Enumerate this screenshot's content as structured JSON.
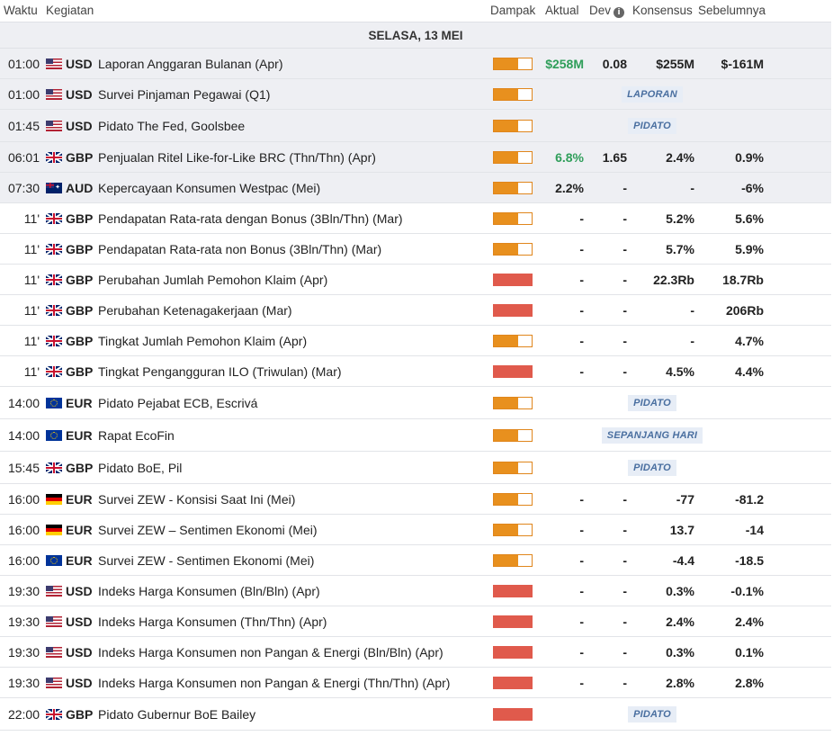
{
  "header": {
    "time": "Waktu",
    "event": "Kegiatan",
    "impact": "Dampak",
    "actual": "Aktual",
    "dev": "Dev",
    "consensus": "Konsensus",
    "previous": "Sebelumnya"
  },
  "date_label": "SELASA, 13 MEI",
  "colors": {
    "medium": "#e8901e",
    "high": "#e05a4c",
    "positive": "#2f9e5a",
    "past_row_bg": "#eeeff3"
  },
  "rows": [
    {
      "time": "01:00",
      "flag": "us",
      "currency": "USD",
      "event": "Laporan Anggaran Bulanan (Apr)",
      "impact": "medium",
      "actual": "$258M",
      "actual_color": "green",
      "dev": "0.08",
      "consensus": "$255M",
      "previous": "$-161M",
      "past": true
    },
    {
      "time": "01:00",
      "flag": "us",
      "currency": "USD",
      "event": "Survei Pinjaman Pegawai (Q1)",
      "impact": "medium",
      "badge": "LAPORAN",
      "past": true
    },
    {
      "time": "01:45",
      "flag": "us",
      "currency": "USD",
      "event": "Pidato The Fed, Goolsbee",
      "impact": "medium",
      "badge": "PIDATO",
      "past": true
    },
    {
      "time": "06:01",
      "flag": "gb",
      "currency": "GBP",
      "event": "Penjualan Ritel Like-for-Like BRC (Thn/Thn) (Apr)",
      "impact": "medium",
      "actual": "6.8%",
      "actual_color": "green",
      "dev": "1.65",
      "consensus": "2.4%",
      "previous": "0.9%",
      "past": true
    },
    {
      "time": "07:30",
      "flag": "au",
      "currency": "AUD",
      "event": "Kepercayaan Konsumen Westpac (Mei)",
      "impact": "medium",
      "actual": "2.2%",
      "dev": "-",
      "consensus": "-",
      "previous": "-6%",
      "past": true
    },
    {
      "time": "11'",
      "flag": "gb",
      "currency": "GBP",
      "event": "Pendapatan Rata-rata dengan Bonus (3Bln/Thn) (Mar)",
      "impact": "medium",
      "actual": "-",
      "dev": "-",
      "consensus": "5.2%",
      "previous": "5.6%"
    },
    {
      "time": "11'",
      "flag": "gb",
      "currency": "GBP",
      "event": "Pendapatan Rata-rata non Bonus (3Bln/Thn) (Mar)",
      "impact": "medium",
      "actual": "-",
      "dev": "-",
      "consensus": "5.7%",
      "previous": "5.9%"
    },
    {
      "time": "11'",
      "flag": "gb",
      "currency": "GBP",
      "event": "Perubahan Jumlah Pemohon Klaim (Apr)",
      "impact": "high",
      "actual": "-",
      "dev": "-",
      "consensus": "22.3Rb",
      "previous": "18.7Rb"
    },
    {
      "time": "11'",
      "flag": "gb",
      "currency": "GBP",
      "event": "Perubahan Ketenagakerjaan (Mar)",
      "impact": "high",
      "actual": "-",
      "dev": "-",
      "consensus": "-",
      "previous": "206Rb"
    },
    {
      "time": "11'",
      "flag": "gb",
      "currency": "GBP",
      "event": "Tingkat Jumlah Pemohon Klaim (Apr)",
      "impact": "medium",
      "actual": "-",
      "dev": "-",
      "consensus": "-",
      "previous": "4.7%"
    },
    {
      "time": "11'",
      "flag": "gb",
      "currency": "GBP",
      "event": "Tingkat Pengangguran ILO (Triwulan) (Mar)",
      "impact": "high",
      "actual": "-",
      "dev": "-",
      "consensus": "4.5%",
      "previous": "4.4%"
    },
    {
      "time": "14:00",
      "flag": "eu",
      "currency": "EUR",
      "event": "Pidato Pejabat ECB, Escrivá",
      "impact": "medium",
      "badge": "PIDATO"
    },
    {
      "time": "14:00",
      "flag": "eu",
      "currency": "EUR",
      "event": "Rapat EcoFin",
      "impact": "medium",
      "badge": "SEPANJANG HARI"
    },
    {
      "time": "15:45",
      "flag": "gb",
      "currency": "GBP",
      "event": "Pidato BoE, Pil",
      "impact": "medium",
      "badge": "PIDATO"
    },
    {
      "time": "16:00",
      "flag": "de",
      "currency": "EUR",
      "event": "Survei ZEW - Konsisi Saat Ini (Mei)",
      "impact": "medium",
      "actual": "-",
      "dev": "-",
      "consensus": "-77",
      "previous": "-81.2"
    },
    {
      "time": "16:00",
      "flag": "de",
      "currency": "EUR",
      "event": "Survei ZEW – Sentimen Ekonomi (Mei)",
      "impact": "medium",
      "actual": "-",
      "dev": "-",
      "consensus": "13.7",
      "previous": "-14"
    },
    {
      "time": "16:00",
      "flag": "eu",
      "currency": "EUR",
      "event": "Survei ZEW - Sentimen Ekonomi (Mei)",
      "impact": "medium",
      "actual": "-",
      "dev": "-",
      "consensus": "-4.4",
      "previous": "-18.5"
    },
    {
      "time": "19:30",
      "flag": "us",
      "currency": "USD",
      "event": "Indeks Harga Konsumen (Bln/Bln) (Apr)",
      "impact": "high",
      "actual": "-",
      "dev": "-",
      "consensus": "0.3%",
      "previous": "-0.1%"
    },
    {
      "time": "19:30",
      "flag": "us",
      "currency": "USD",
      "event": "Indeks Harga Konsumen (Thn/Thn) (Apr)",
      "impact": "high",
      "actual": "-",
      "dev": "-",
      "consensus": "2.4%",
      "previous": "2.4%"
    },
    {
      "time": "19:30",
      "flag": "us",
      "currency": "USD",
      "event": "Indeks Harga Konsumen non Pangan & Energi (Bln/Bln) (Apr)",
      "impact": "high",
      "actual": "-",
      "dev": "-",
      "consensus": "0.3%",
      "previous": "0.1%"
    },
    {
      "time": "19:30",
      "flag": "us",
      "currency": "USD",
      "event": "Indeks Harga Konsumen non Pangan & Energi (Thn/Thn) (Apr)",
      "impact": "high",
      "actual": "-",
      "dev": "-",
      "consensus": "2.8%",
      "previous": "2.8%"
    },
    {
      "time": "22:00",
      "flag": "gb",
      "currency": "GBP",
      "event": "Pidato Gubernur BoE Bailey",
      "impact": "high",
      "badge": "PIDATO"
    }
  ]
}
